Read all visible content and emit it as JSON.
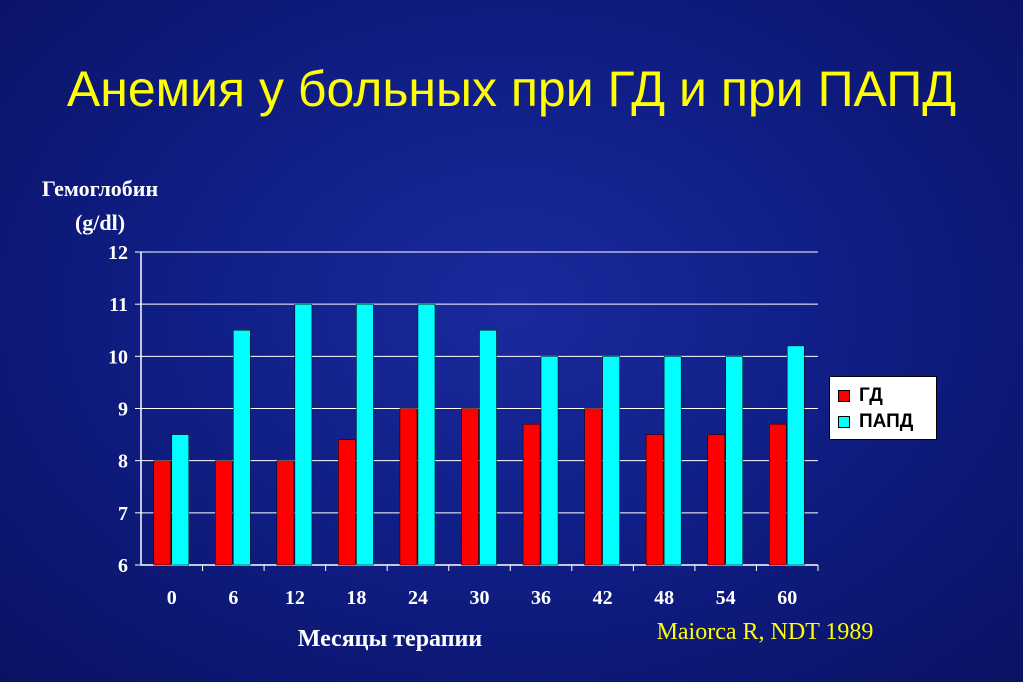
{
  "slide": {
    "title": "Анемия у больных при ГД и при ПАПД",
    "citation": "Maiorca R, NDT 1989"
  },
  "colors": {
    "background": "#101e86",
    "title": "#ffff00",
    "gd": "#ff0000",
    "papd": "#00ffff"
  },
  "chart_data": {
    "type": "bar",
    "ylabel_lines": [
      "Гемоглобин",
      "(g/dl)"
    ],
    "xlabel": "Месяцы терапии",
    "categories": [
      "0",
      "6",
      "12",
      "18",
      "24",
      "30",
      "36",
      "42",
      "48",
      "54",
      "60"
    ],
    "ylim": [
      6,
      12
    ],
    "yticks": [
      6,
      7,
      8,
      9,
      10,
      11,
      12
    ],
    "grid": true,
    "legend_position": "right",
    "series": [
      {
        "name": "ГД",
        "color": "#ff0000",
        "values": [
          8,
          8,
          8,
          8.4,
          9,
          9,
          8.7,
          9,
          8.5,
          8.5,
          8.7
        ]
      },
      {
        "name": "ПАПД",
        "color": "#00ffff",
        "values": [
          8.5,
          10.5,
          11,
          11,
          11,
          10.5,
          10,
          10,
          10,
          10,
          10.2
        ]
      }
    ]
  }
}
